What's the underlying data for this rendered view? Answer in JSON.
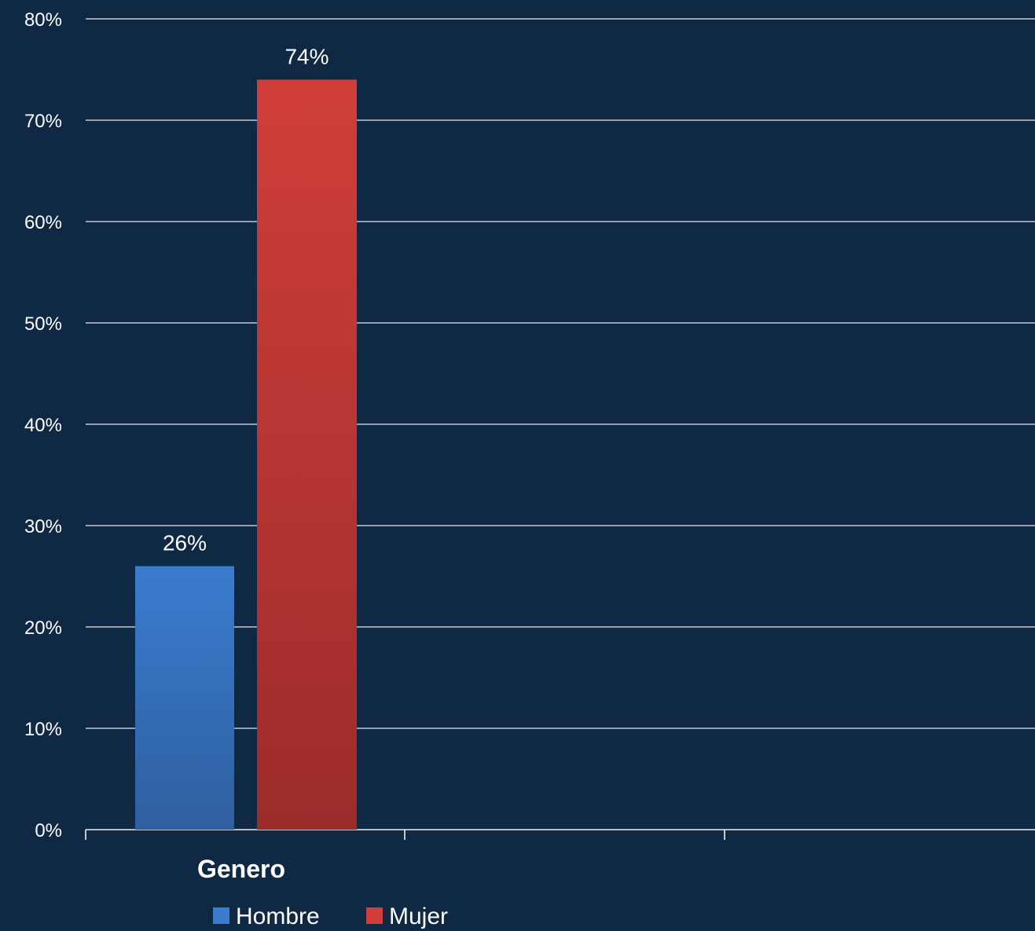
{
  "chart_data": {
    "type": "bar",
    "categories": [
      "Genero"
    ],
    "series": [
      {
        "name": "Hombre",
        "values": [
          26
        ],
        "color": "#3a7ccf"
      },
      {
        "name": "Mujer",
        "values": [
          74
        ],
        "color": "#d03e3a"
      }
    ],
    "ylim": [
      0,
      80
    ],
    "yticks": [
      0,
      10,
      20,
      30,
      40,
      50,
      60,
      70,
      80
    ],
    "tick_suffix": "%",
    "data_labels": [
      "26%",
      "74%"
    ],
    "grid": true,
    "legend_position": "bottom",
    "background_color": "#0f2844",
    "grid_color": "#ffffff"
  }
}
